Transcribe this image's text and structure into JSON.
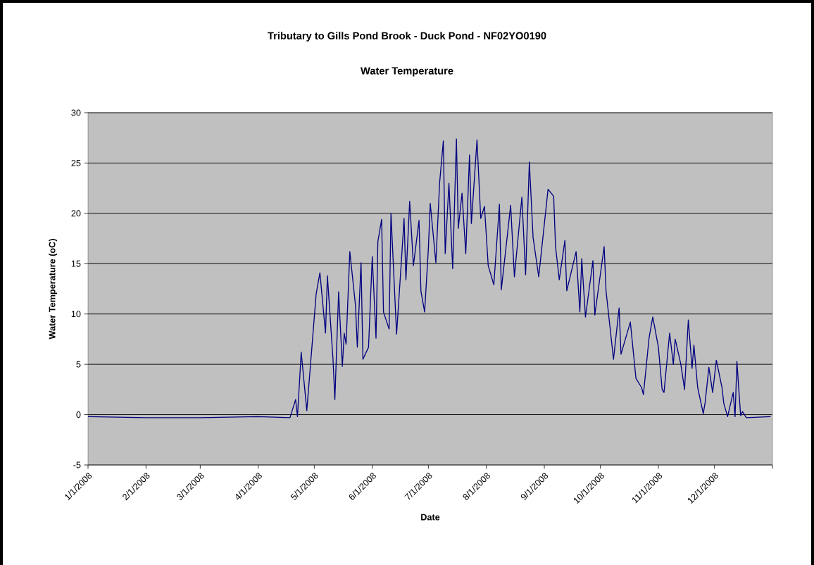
{
  "chart_data": {
    "type": "line",
    "title": "Tributary to Gills Pond Brook - Duck Pond - NF02YO0190",
    "subtitle": "Water Temperature",
    "xlabel": "Date",
    "ylabel": "Water Temperature (oC)",
    "x": [
      "2008-01-01",
      "2008-02-01",
      "2008-03-01",
      "2008-04-01",
      "2008-04-18",
      "2008-04-21",
      "2008-04-22",
      "2008-04-24",
      "2008-04-27",
      "2008-05-02",
      "2008-05-04",
      "2008-05-07",
      "2008-05-08",
      "2008-05-11",
      "2008-05-12",
      "2008-05-14",
      "2008-05-16",
      "2008-05-17",
      "2008-05-18",
      "2008-05-20",
      "2008-05-23",
      "2008-05-24",
      "2008-05-26",
      "2008-05-27",
      "2008-05-30",
      "2008-06-01",
      "2008-06-03",
      "2008-06-04",
      "2008-06-06",
      "2008-06-07",
      "2008-06-10",
      "2008-06-11",
      "2008-06-14",
      "2008-06-17",
      "2008-06-18",
      "2008-06-19",
      "2008-06-21",
      "2008-06-23",
      "2008-06-26",
      "2008-06-27",
      "2008-06-29",
      "2008-07-01",
      "2008-07-02",
      "2008-07-05",
      "2008-07-07",
      "2008-07-09",
      "2008-07-10",
      "2008-07-12",
      "2008-07-14",
      "2008-07-16",
      "2008-07-17",
      "2008-07-19",
      "2008-07-21",
      "2008-07-23",
      "2008-07-24",
      "2008-07-27",
      "2008-07-29",
      "2008-07-31",
      "2008-08-02",
      "2008-08-05",
      "2008-08-08",
      "2008-08-09",
      "2008-08-14",
      "2008-08-16",
      "2008-08-20",
      "2008-08-22",
      "2008-08-24",
      "2008-08-26",
      "2008-08-29",
      "2008-09-03",
      "2008-09-06",
      "2008-09-07",
      "2008-09-09",
      "2008-09-12",
      "2008-09-13",
      "2008-09-18",
      "2008-09-20",
      "2008-09-21",
      "2008-09-23",
      "2008-09-27",
      "2008-09-28",
      "2008-10-03",
      "2008-10-04",
      "2008-10-08",
      "2008-10-11",
      "2008-10-12",
      "2008-10-17",
      "2008-10-20",
      "2008-10-23",
      "2008-10-24",
      "2008-10-27",
      "2008-10-29",
      "2008-11-01",
      "2008-11-03",
      "2008-11-04",
      "2008-11-07",
      "2008-11-09",
      "2008-11-10",
      "2008-11-13",
      "2008-11-15",
      "2008-11-17",
      "2008-11-19",
      "2008-11-20",
      "2008-11-22",
      "2008-11-25",
      "2008-11-26",
      "2008-11-28",
      "2008-11-30",
      "2008-12-02",
      "2008-12-05",
      "2008-12-06",
      "2008-12-08",
      "2008-12-11",
      "2008-12-12",
      "2008-12-13",
      "2008-12-14",
      "2008-12-15",
      "2008-12-16",
      "2008-12-18",
      "2008-12-31"
    ],
    "series": [
      {
        "color": "#000080",
        "values": [
          -0.2,
          -0.3,
          -0.3,
          -0.2,
          -0.3,
          1.5,
          -0.2,
          6.2,
          0.4,
          12,
          14.1,
          8.1,
          13.8,
          5.5,
          1.5,
          12.2,
          4.8,
          8.1,
          7,
          16.2,
          10.9,
          6.7,
          15.1,
          5.5,
          6.7,
          15.7,
          7.6,
          17.2,
          19.4,
          10.2,
          8.5,
          20,
          8,
          16.5,
          19.5,
          13.4,
          21.2,
          14.8,
          19.3,
          12.3,
          10.2,
          16.5,
          21,
          15.1,
          23,
          27.2,
          16,
          23,
          14.5,
          27.4,
          18.5,
          22,
          16,
          25.8,
          19,
          27.3,
          19.5,
          20.7,
          14.8,
          12.9,
          20.9,
          12.4,
          20.8,
          13.7,
          21.6,
          13.9,
          25.1,
          17.6,
          13.7,
          22.4,
          21.7,
          16.7,
          13.4,
          17.3,
          12.3,
          16.2,
          10.2,
          15.5,
          9.7,
          15.3,
          9.9,
          16.7,
          12.3,
          5.5,
          10.6,
          6,
          9.2,
          3.6,
          2.7,
          2,
          7.6,
          9.7,
          6.7,
          2.5,
          2.2,
          8.1,
          5,
          7.5,
          5,
          2.5,
          9.4,
          4.6,
          6.9,
          2.7,
          0.1,
          1.2,
          4.7,
          2.2,
          5.4,
          2.7,
          1.1,
          -0.2,
          2.2,
          -0.2,
          5.3,
          2.5,
          -0.1,
          0.3,
          -0.3,
          -0.2
        ]
      }
    ],
    "xlim": [
      "2008-01-01",
      "2009-01-01"
    ],
    "xticks": [
      {
        "value": "2008-01-01",
        "label": "1/1/2008"
      },
      {
        "value": "2008-02-01",
        "label": "2/1/2008"
      },
      {
        "value": "2008-03-01",
        "label": "3/1/2008"
      },
      {
        "value": "2008-04-01",
        "label": "4/1/2008"
      },
      {
        "value": "2008-05-01",
        "label": "5/1/2008"
      },
      {
        "value": "2008-06-01",
        "label": "6/1/2008"
      },
      {
        "value": "2008-07-01",
        "label": "7/1/2008"
      },
      {
        "value": "2008-08-01",
        "label": "8/1/2008"
      },
      {
        "value": "2008-09-01",
        "label": "9/1/2008"
      },
      {
        "value": "2008-10-01",
        "label": "10/1/2008"
      },
      {
        "value": "2008-11-01",
        "label": "11/1/2008"
      },
      {
        "value": "2008-12-01",
        "label": "12/1/2008"
      },
      {
        "value": "2009-01-01",
        "label": null
      }
    ],
    "ylim": [
      -5,
      30
    ],
    "yticks": [
      -5,
      0,
      5,
      10,
      15,
      20,
      25,
      30
    ],
    "grid": "y",
    "marker": "none",
    "line_style": "solid"
  }
}
